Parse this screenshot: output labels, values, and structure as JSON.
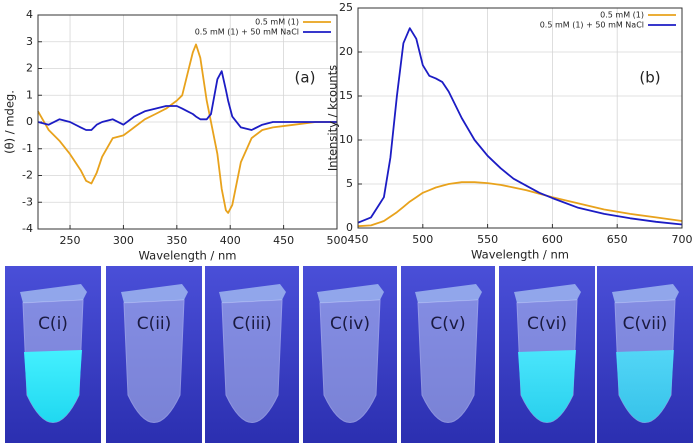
{
  "chart_data": [
    {
      "type": "line",
      "annotation": "(a)",
      "x_label": "Wavelength / nm",
      "y_label": "(θ) / mdeg.",
      "x": [
        220,
        230,
        240,
        250,
        260,
        265,
        270,
        275,
        280,
        290,
        300,
        310,
        320,
        330,
        340,
        350,
        355,
        360,
        365,
        368,
        372,
        378,
        382,
        388,
        392,
        396,
        398,
        402,
        410,
        420,
        430,
        440,
        460,
        480,
        500
      ],
      "series": [
        {
          "name": "0.5 mM (1)",
          "color": "#e8a21c",
          "values": [
            0.4,
            -0.3,
            -0.7,
            -1.2,
            -1.8,
            -2.2,
            -2.3,
            -1.9,
            -1.3,
            -0.6,
            -0.5,
            -0.2,
            0.1,
            0.3,
            0.5,
            0.8,
            1.0,
            1.8,
            2.6,
            2.9,
            2.4,
            0.8,
            0,
            -1.2,
            -2.5,
            -3.3,
            -3.4,
            -3.1,
            -1.5,
            -0.6,
            -0.3,
            -0.2,
            -0.1,
            0,
            0
          ]
        },
        {
          "name": "0.5 mM (1) + 50 mM NaCl",
          "color": "#1c1cc4",
          "values": [
            0,
            -0.1,
            0.1,
            0,
            -0.2,
            -0.3,
            -0.3,
            -0.1,
            0,
            0.1,
            -0.1,
            0.2,
            0.4,
            0.5,
            0.6,
            0.6,
            0.5,
            0.4,
            0.3,
            0.2,
            0.1,
            0.1,
            0.3,
            1.6,
            1.9,
            1.2,
            0.8,
            0.2,
            -0.2,
            -0.3,
            -0.1,
            0,
            0,
            0,
            0
          ]
        }
      ],
      "xlim": [
        220,
        500
      ],
      "xticks": [
        250,
        300,
        350,
        400,
        450,
        500
      ],
      "ylim": [
        -4,
        4
      ],
      "yticks": [
        -4,
        -3,
        -2,
        -1,
        0,
        1,
        2,
        3,
        4
      ],
      "grid": true,
      "legend": "top-right"
    },
    {
      "type": "line",
      "annotation": "(b)",
      "x_label": "Wavelength / nm",
      "y_label": "Intensity / kcounts",
      "x": [
        450,
        460,
        470,
        475,
        480,
        485,
        490,
        495,
        500,
        505,
        510,
        515,
        520,
        530,
        540,
        550,
        560,
        570,
        580,
        590,
        600,
        620,
        640,
        660,
        680,
        700
      ],
      "series": [
        {
          "name": "0.5 mM (1)",
          "color": "#e8a21c",
          "values": [
            0.2,
            0.3,
            0.8,
            1.3,
            1.8,
            2.4,
            3.0,
            3.5,
            4.0,
            4.3,
            4.6,
            4.8,
            5.0,
            5.2,
            5.2,
            5.1,
            4.9,
            4.6,
            4.3,
            3.9,
            3.5,
            2.8,
            2.1,
            1.6,
            1.2,
            0.8
          ]
        },
        {
          "name": "0.5 mM (1) + 50 mM NaCl",
          "color": "#1c1cc4",
          "values": [
            0.6,
            1.2,
            3.5,
            8,
            15,
            21,
            22.7,
            21.5,
            18.5,
            17.3,
            17,
            16.6,
            15.5,
            12.5,
            10,
            8.2,
            6.8,
            5.6,
            4.8,
            4.0,
            3.4,
            2.3,
            1.6,
            1.1,
            0.7,
            0.4
          ]
        }
      ],
      "xlim": [
        450,
        700
      ],
      "xticks": [
        450,
        500,
        550,
        600,
        650,
        700
      ],
      "ylim": [
        0,
        25
      ],
      "yticks": [
        0,
        5,
        10,
        15,
        20,
        25
      ],
      "grid": true,
      "legend": "top-right"
    }
  ],
  "photos": {
    "labels": [
      "C(i)",
      "C(ii)",
      "C(iii)",
      "C(iv)",
      "C(v)",
      "C(vi)",
      "C(vii)"
    ]
  }
}
